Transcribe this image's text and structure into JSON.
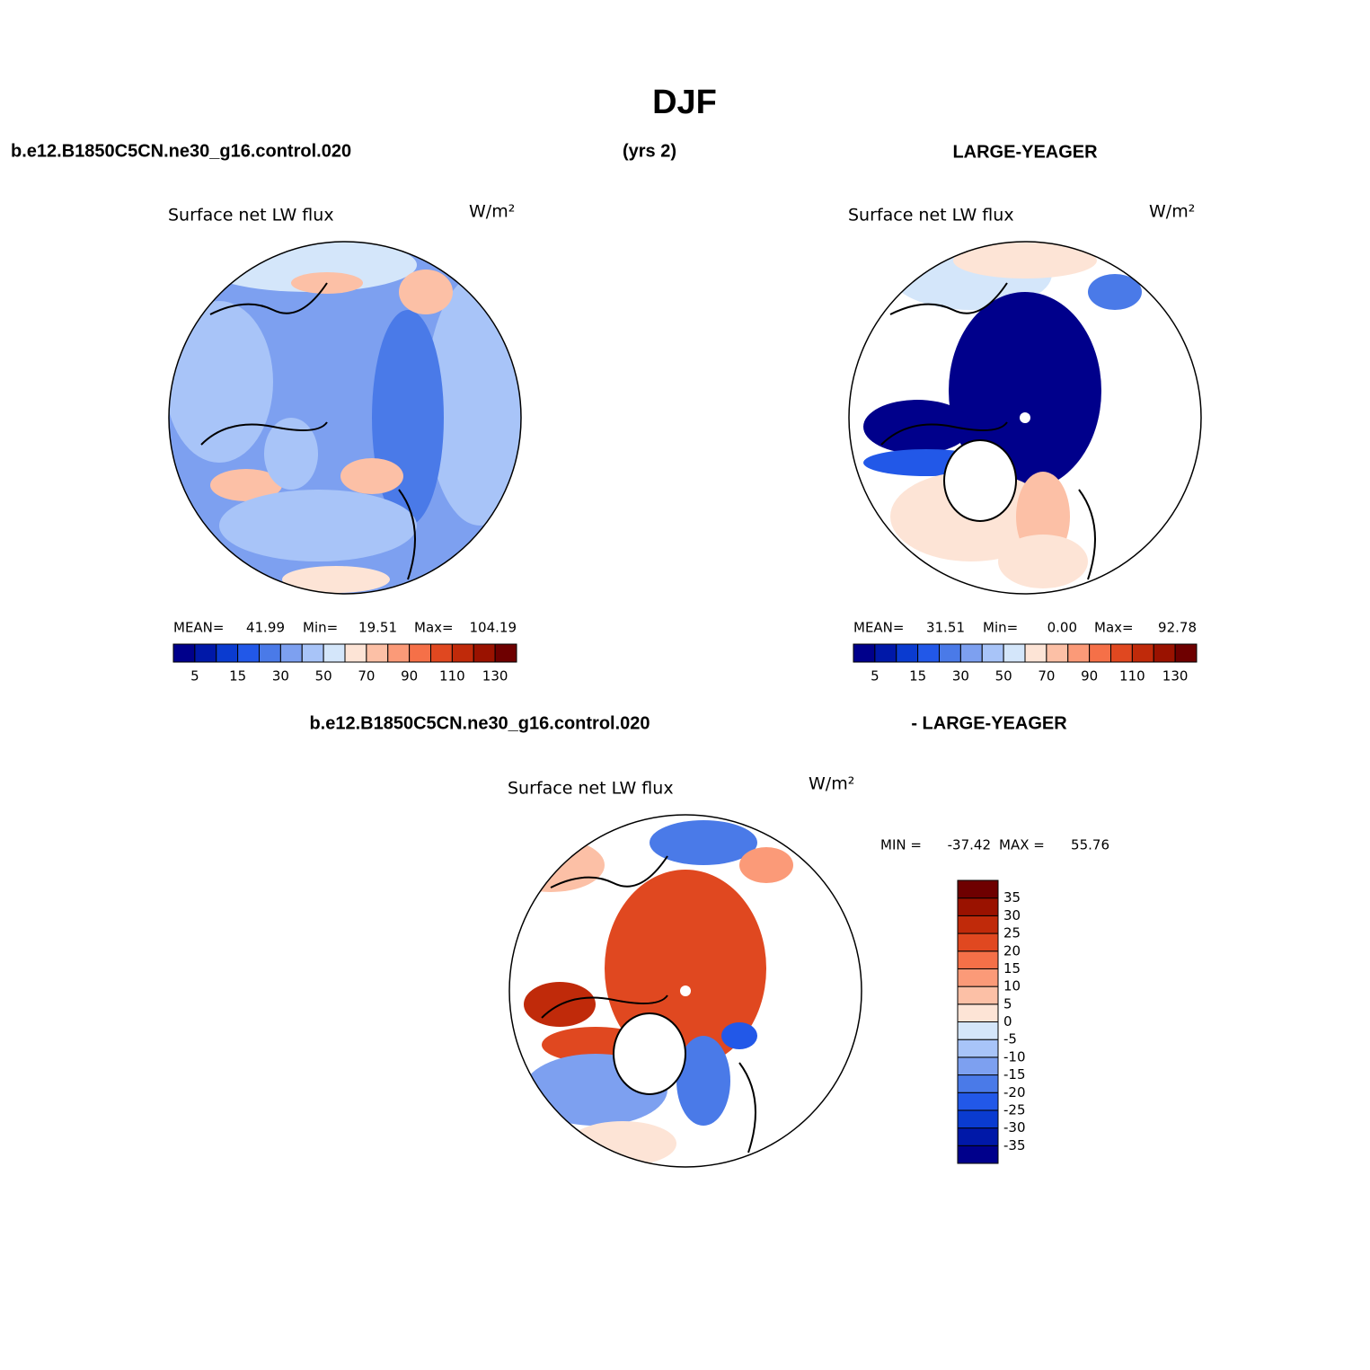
{
  "title": "DJF",
  "header": {
    "left": "b.e12.B1850C5CN.ne30_g16.control.020",
    "center": "(yrs 2)",
    "right": "LARGE-YEAGER"
  },
  "panels": [
    {
      "title": "Surface net LW flux",
      "units": "W/m²",
      "stats": [
        {
          "label": "MEAN=",
          "value": 41.99
        },
        {
          "label": "Min=",
          "value": 19.51
        },
        {
          "label": "Max=",
          "value": 104.19
        }
      ],
      "colorbar": {
        "colors": [
          "#00008b",
          "#0018a8",
          "#0a3bd0",
          "#2258e8",
          "#4a7ae8",
          "#7da0f0",
          "#a8c4f8",
          "#d4e6fa",
          "#fde4d6",
          "#fcc0a6",
          "#fb9a78",
          "#f57048",
          "#e04820",
          "#c02a0a",
          "#9a1200",
          "#6e0000"
        ],
        "labels": [
          5,
          15,
          30,
          50,
          70,
          90,
          110,
          130
        ]
      }
    },
    {
      "title": "Surface net LW flux",
      "units": "W/m²",
      "stats": [
        {
          "label": "MEAN=",
          "value": 31.51
        },
        {
          "label": "Min=",
          "value": 0,
          "value_label": "0.00"
        },
        {
          "label": "Max=",
          "value": 92.78
        }
      ],
      "colorbar": {
        "colors": [
          "#00008b",
          "#0018a8",
          "#0a3bd0",
          "#2258e8",
          "#4a7ae8",
          "#7da0f0",
          "#a8c4f8",
          "#d4e6fa",
          "#fde4d6",
          "#fcc0a6",
          "#fb9a78",
          "#f57048",
          "#e04820",
          "#c02a0a",
          "#9a1200",
          "#6e0000"
        ],
        "labels": [
          5,
          15,
          30,
          50,
          70,
          90,
          110,
          130
        ]
      }
    }
  ],
  "diff_header": {
    "left": "b.e12.B1850C5CN.ne30_g16.control.020",
    "right": "- LARGE-YEAGER"
  },
  "diff_panel": {
    "title": "Surface net LW flux",
    "units": "W/m²",
    "stats": [
      {
        "label": "MIN =",
        "value": -37.42
      },
      {
        "label": "MAX =",
        "value": 55.76
      }
    ],
    "colorbar": {
      "colors": [
        "#00008b",
        "#0018a8",
        "#0a3bd0",
        "#2258e8",
        "#4a7ae8",
        "#7da0f0",
        "#a8c4f8",
        "#d4e6fa",
        "#fde4d6",
        "#fcc0a6",
        "#fb9a78",
        "#f57048",
        "#e04820",
        "#c02a0a",
        "#9a1200",
        "#6e0000"
      ],
      "labels": [
        35,
        30,
        25,
        20,
        15,
        10,
        5,
        0,
        -5,
        -10,
        -15,
        -20,
        -25,
        -30,
        -35
      ]
    }
  }
}
